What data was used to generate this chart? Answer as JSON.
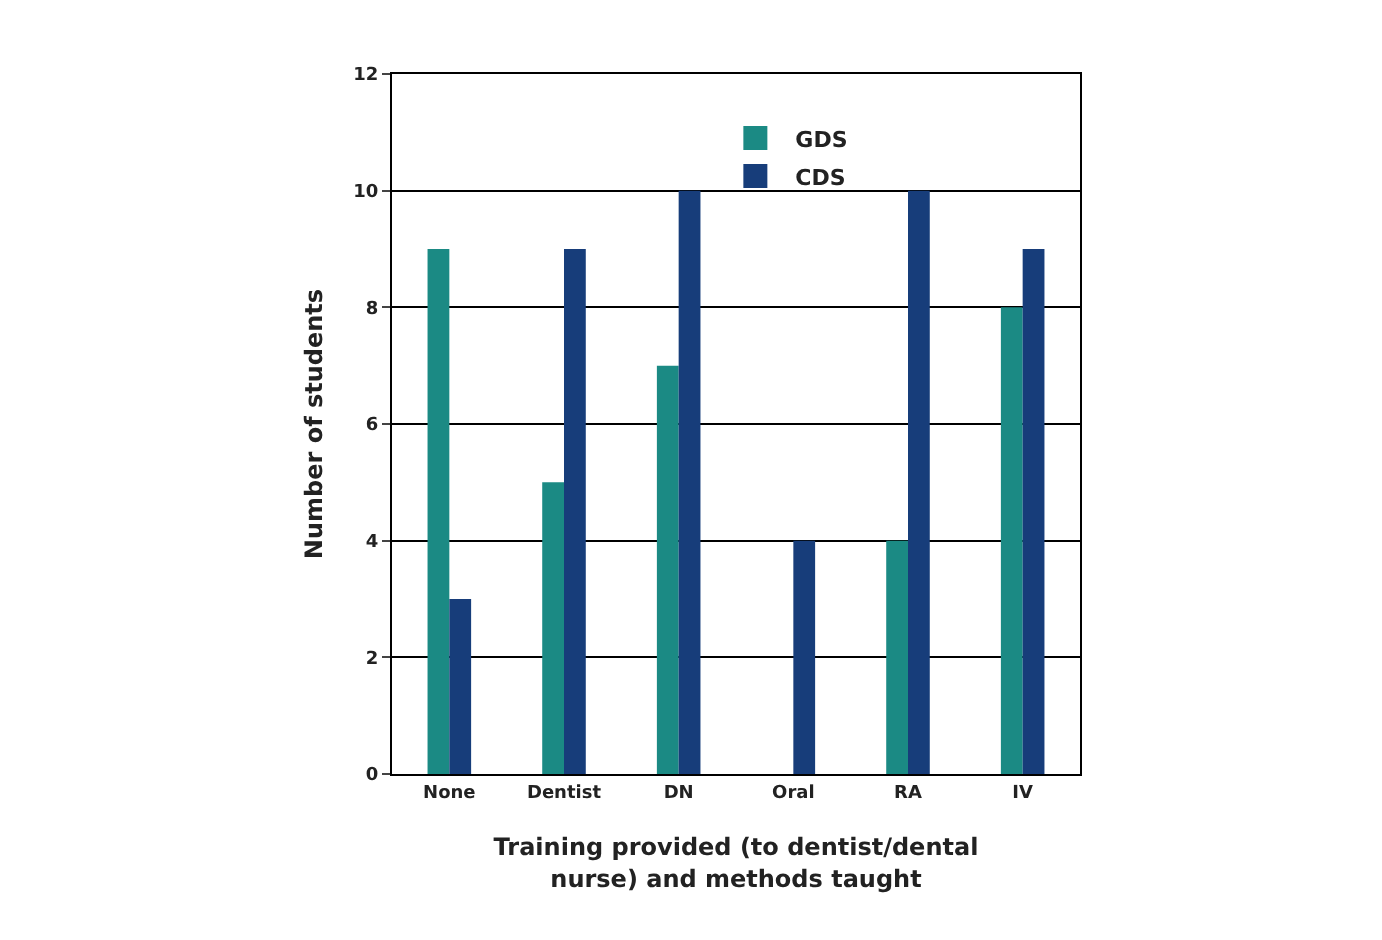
{
  "chart_data": {
    "type": "bar",
    "xlabel": "Training provided (to dentist/dental\nnurse) and methods taught",
    "ylabel": "Number of students",
    "categories": [
      "None",
      "Dentist",
      "DN",
      "Oral",
      "RA",
      "IV"
    ],
    "series": [
      {
        "name": "GDS",
        "color": "#1b8a84",
        "values": [
          9,
          5,
          7,
          0,
          4,
          8
        ]
      },
      {
        "name": "CDS",
        "color": "#173d7a",
        "values": [
          3,
          9,
          10,
          4,
          10,
          9
        ]
      }
    ],
    "ylim": [
      0,
      12
    ],
    "yticks": [
      0,
      2,
      4,
      6,
      8,
      10,
      12
    ],
    "grid": "y",
    "legend": "top"
  }
}
